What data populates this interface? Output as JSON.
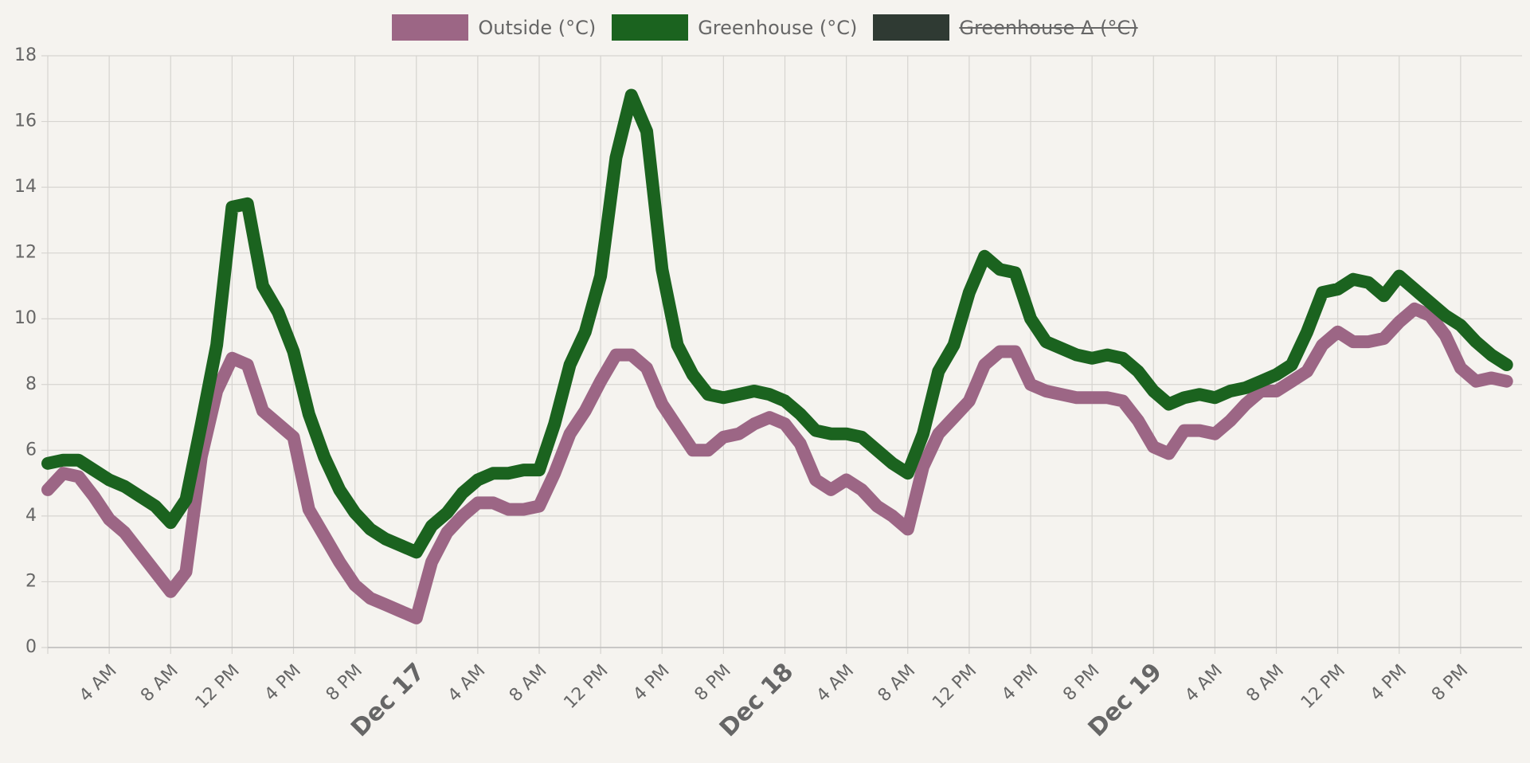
{
  "chart_data": {
    "type": "line",
    "x": [
      "Dec 16 12 AM",
      "Dec 16 1 AM",
      "Dec 16 2 AM",
      "Dec 16 3 AM",
      "Dec 16 4 AM",
      "Dec 16 5 AM",
      "Dec 16 6 AM",
      "Dec 16 7 AM",
      "Dec 16 8 AM",
      "Dec 16 9 AM",
      "Dec 16 10 AM",
      "Dec 16 11 AM",
      "Dec 16 12 PM",
      "Dec 16 1 PM",
      "Dec 16 2 PM",
      "Dec 16 3 PM",
      "Dec 16 4 PM",
      "Dec 16 5 PM",
      "Dec 16 6 PM",
      "Dec 16 7 PM",
      "Dec 16 8 PM",
      "Dec 16 9 PM",
      "Dec 16 10 PM",
      "Dec 16 11 PM",
      "Dec 17 12 AM",
      "Dec 17 1 AM",
      "Dec 17 2 AM",
      "Dec 17 3 AM",
      "Dec 17 4 AM",
      "Dec 17 5 AM",
      "Dec 17 6 AM",
      "Dec 17 7 AM",
      "Dec 17 8 AM",
      "Dec 17 9 AM",
      "Dec 17 10 AM",
      "Dec 17 11 AM",
      "Dec 17 12 PM",
      "Dec 17 1 PM",
      "Dec 17 2 PM",
      "Dec 17 3 PM",
      "Dec 17 4 PM",
      "Dec 17 5 PM",
      "Dec 17 6 PM",
      "Dec 17 7 PM",
      "Dec 17 8 PM",
      "Dec 17 9 PM",
      "Dec 17 10 PM",
      "Dec 17 11 PM",
      "Dec 18 12 AM",
      "Dec 18 1 AM",
      "Dec 18 2 AM",
      "Dec 18 3 AM",
      "Dec 18 4 AM",
      "Dec 18 5 AM",
      "Dec 18 6 AM",
      "Dec 18 7 AM",
      "Dec 18 8 AM",
      "Dec 18 9 AM",
      "Dec 18 10 AM",
      "Dec 18 11 AM",
      "Dec 18 12 PM",
      "Dec 18 1 PM",
      "Dec 18 2 PM",
      "Dec 18 3 PM",
      "Dec 18 4 PM",
      "Dec 18 5 PM",
      "Dec 18 6 PM",
      "Dec 18 7 PM",
      "Dec 18 8 PM",
      "Dec 18 9 PM",
      "Dec 18 10 PM",
      "Dec 18 11 PM",
      "Dec 19 12 AM",
      "Dec 19 1 AM",
      "Dec 19 2 AM",
      "Dec 19 3 AM",
      "Dec 19 4 AM",
      "Dec 19 5 AM",
      "Dec 19 6 AM",
      "Dec 19 7 AM",
      "Dec 19 8 AM",
      "Dec 19 9 AM",
      "Dec 19 10 AM",
      "Dec 19 11 AM",
      "Dec 19 12 PM",
      "Dec 19 1 PM",
      "Dec 19 2 PM",
      "Dec 19 3 PM",
      "Dec 19 4 PM",
      "Dec 19 5 PM",
      "Dec 19 6 PM",
      "Dec 19 7 PM",
      "Dec 19 8 PM",
      "Dec 19 9 PM",
      "Dec 19 10 PM",
      "Dec 19 11 PM"
    ],
    "series": [
      {
        "name": "Outside (°C)",
        "color": "#9c6685",
        "values": [
          4.8,
          5.3,
          5.2,
          4.6,
          3.9,
          3.5,
          2.9,
          2.3,
          1.7,
          2.3,
          5.8,
          7.8,
          8.8,
          8.6,
          7.2,
          6.8,
          6.4,
          4.2,
          3.4,
          2.6,
          1.9,
          1.5,
          1.3,
          1.1,
          0.9,
          2.6,
          3.5,
          4.0,
          4.4,
          4.4,
          4.2,
          4.2,
          4.3,
          5.3,
          6.5,
          7.2,
          8.1,
          8.9,
          8.9,
          8.5,
          7.4,
          6.7,
          6.0,
          6.0,
          6.4,
          6.5,
          6.8,
          7.0,
          6.8,
          6.2,
          5.1,
          4.8,
          5.1,
          4.8,
          4.3,
          4.0,
          3.6,
          5.5,
          6.5,
          7.0,
          7.5,
          8.6,
          9.0,
          9.0,
          8.0,
          7.8,
          7.7,
          7.6,
          7.6,
          7.6,
          7.5,
          6.9,
          6.1,
          5.9,
          6.6,
          6.6,
          6.5,
          6.9,
          7.4,
          7.8,
          7.8,
          8.1,
          8.4,
          9.2,
          9.6,
          9.3,
          9.3,
          9.4,
          9.9,
          10.3,
          10.1,
          9.5,
          8.5,
          8.1,
          8.2,
          8.1
        ]
      },
      {
        "name": "Greenhouse (°C)",
        "color": "#1b631f",
        "values": [
          5.6,
          5.7,
          5.7,
          5.4,
          5.1,
          4.9,
          4.6,
          4.3,
          3.8,
          4.5,
          6.8,
          9.2,
          13.4,
          13.5,
          11.0,
          10.2,
          9.0,
          7.1,
          5.8,
          4.8,
          4.1,
          3.6,
          3.3,
          3.1,
          2.9,
          3.7,
          4.1,
          4.7,
          5.1,
          5.3,
          5.3,
          5.4,
          5.4,
          6.8,
          8.6,
          9.6,
          11.3,
          14.9,
          16.8,
          15.7,
          11.5,
          9.2,
          8.3,
          7.7,
          7.6,
          7.7,
          7.8,
          7.7,
          7.5,
          7.1,
          6.6,
          6.5,
          6.5,
          6.4,
          6.0,
          5.6,
          5.3,
          6.5,
          8.4,
          9.2,
          10.8,
          11.9,
          11.5,
          11.4,
          10.0,
          9.3,
          9.1,
          8.9,
          8.8,
          8.9,
          8.8,
          8.4,
          7.8,
          7.4,
          7.6,
          7.7,
          7.6,
          7.8,
          7.9,
          8.1,
          8.3,
          8.6,
          9.6,
          10.8,
          10.9,
          11.2,
          11.1,
          10.7,
          11.3,
          10.9,
          10.5,
          10.1,
          9.8,
          9.3,
          8.9,
          8.6
        ]
      },
      {
        "name": "Greenhouse Δ (°C)",
        "color": "#2f3a33",
        "hidden": true
      }
    ],
    "ylim": [
      0,
      18
    ],
    "yticks": [
      0,
      2,
      4,
      6,
      8,
      10,
      12,
      14,
      16,
      18
    ],
    "xticks": [
      {
        "value": "Dec 16 4 AM",
        "label": "4 AM"
      },
      {
        "value": "Dec 16 8 AM",
        "label": "8 AM"
      },
      {
        "value": "Dec 16 12 PM",
        "label": "12 PM"
      },
      {
        "value": "Dec 16 4 PM",
        "label": "4 PM"
      },
      {
        "value": "Dec 16 8 PM",
        "label": "8 PM"
      },
      {
        "value": "Dec 17 12 AM",
        "label": "Dec 17"
      },
      {
        "value": "Dec 17 4 AM",
        "label": "4 AM"
      },
      {
        "value": "Dec 17 8 AM",
        "label": "8 AM"
      },
      {
        "value": "Dec 17 12 PM",
        "label": "12 PM"
      },
      {
        "value": "Dec 17 4 PM",
        "label": "4 PM"
      },
      {
        "value": "Dec 17 8 PM",
        "label": "8 PM"
      },
      {
        "value": "Dec 18 12 AM",
        "label": "Dec 18"
      },
      {
        "value": "Dec 18 4 AM",
        "label": "4 AM"
      },
      {
        "value": "Dec 18 8 AM",
        "label": "8 AM"
      },
      {
        "value": "Dec 18 12 PM",
        "label": "12 PM"
      },
      {
        "value": "Dec 18 4 PM",
        "label": "4 PM"
      },
      {
        "value": "Dec 18 8 PM",
        "label": "8 PM"
      },
      {
        "value": "Dec 19 12 AM",
        "label": "Dec 19"
      },
      {
        "value": "Dec 19 4 AM",
        "label": "4 AM"
      },
      {
        "value": "Dec 19 8 AM",
        "label": "8 AM"
      },
      {
        "value": "Dec 19 12 PM",
        "label": "12 PM"
      },
      {
        "value": "Dec 19 4 PM",
        "label": "4 PM"
      },
      {
        "value": "Dec 19 8 PM",
        "label": "8 PM"
      }
    ],
    "grid": true
  }
}
